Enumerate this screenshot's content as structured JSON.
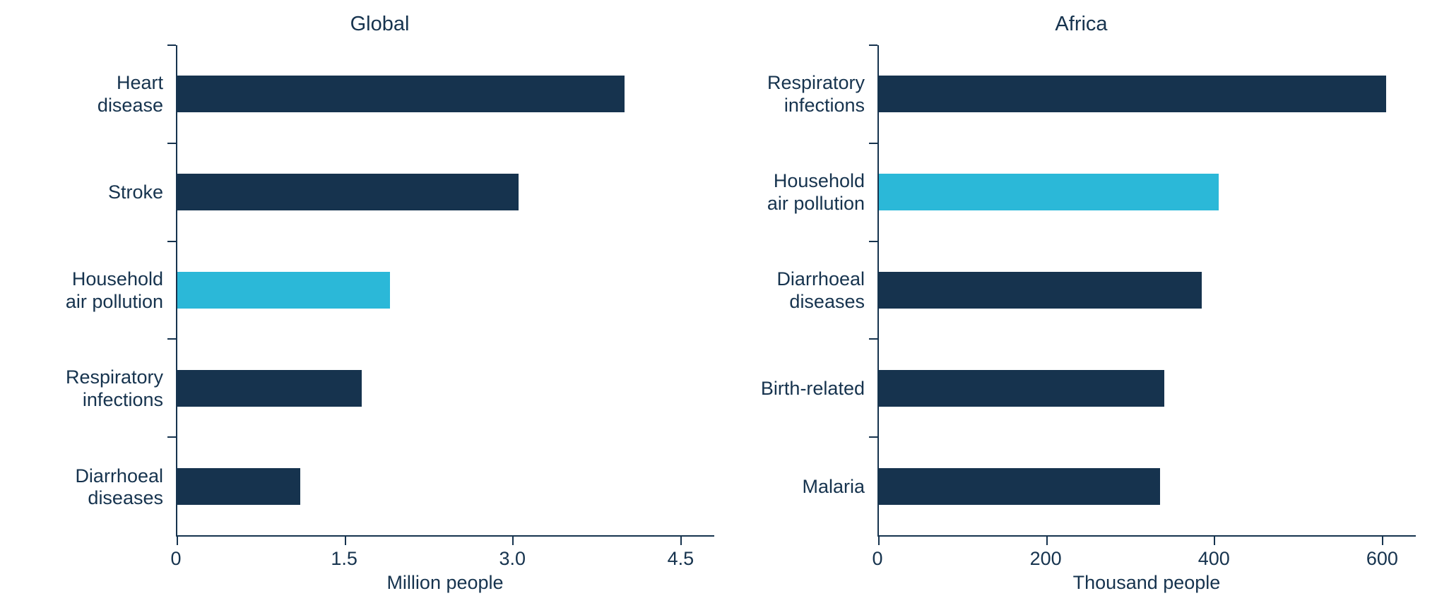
{
  "colors": {
    "bar_default": "#16334e",
    "bar_highlight": "#2bb8d8",
    "axis": "#16334e",
    "text": "#16334e",
    "background": "#ffffff"
  },
  "chart_data": [
    {
      "type": "bar",
      "orientation": "horizontal",
      "title": "Global",
      "xlabel": "Million people",
      "categories": [
        "Heart disease",
        "Stroke",
        "Household air pollution",
        "Respiratory infections",
        "Diarrhoeal diseases"
      ],
      "category_labels": [
        "Heart\ndisease",
        "Stroke",
        "Household\nair pollution",
        "Respiratory\ninfections",
        "Diarrhoeal\ndiseases"
      ],
      "values": [
        4.0,
        3.05,
        1.9,
        1.65,
        1.1
      ],
      "highlight_index": 2,
      "xlim": [
        0,
        4.8
      ],
      "xticks": [
        0,
        1.5,
        3.0,
        4.5
      ],
      "xtick_labels": [
        "0",
        "1.5",
        "3.0",
        "4.5"
      ],
      "grid": false,
      "legend": false
    },
    {
      "type": "bar",
      "orientation": "horizontal",
      "title": "Africa",
      "xlabel": "Thousand people",
      "categories": [
        "Respiratory infections",
        "Household air pollution",
        "Diarrhoeal diseases",
        "Birth-related",
        "Malaria"
      ],
      "category_labels": [
        "Respiratory\ninfections",
        "Household\nair pollution",
        "Diarrhoeal\ndiseases",
        "Birth-related",
        "Malaria"
      ],
      "values": [
        605,
        405,
        385,
        340,
        335
      ],
      "highlight_index": 1,
      "xlim": [
        0,
        640
      ],
      "xticks": [
        0,
        200,
        400,
        600
      ],
      "xtick_labels": [
        "0",
        "200",
        "400",
        "600"
      ],
      "grid": false,
      "legend": false
    }
  ]
}
